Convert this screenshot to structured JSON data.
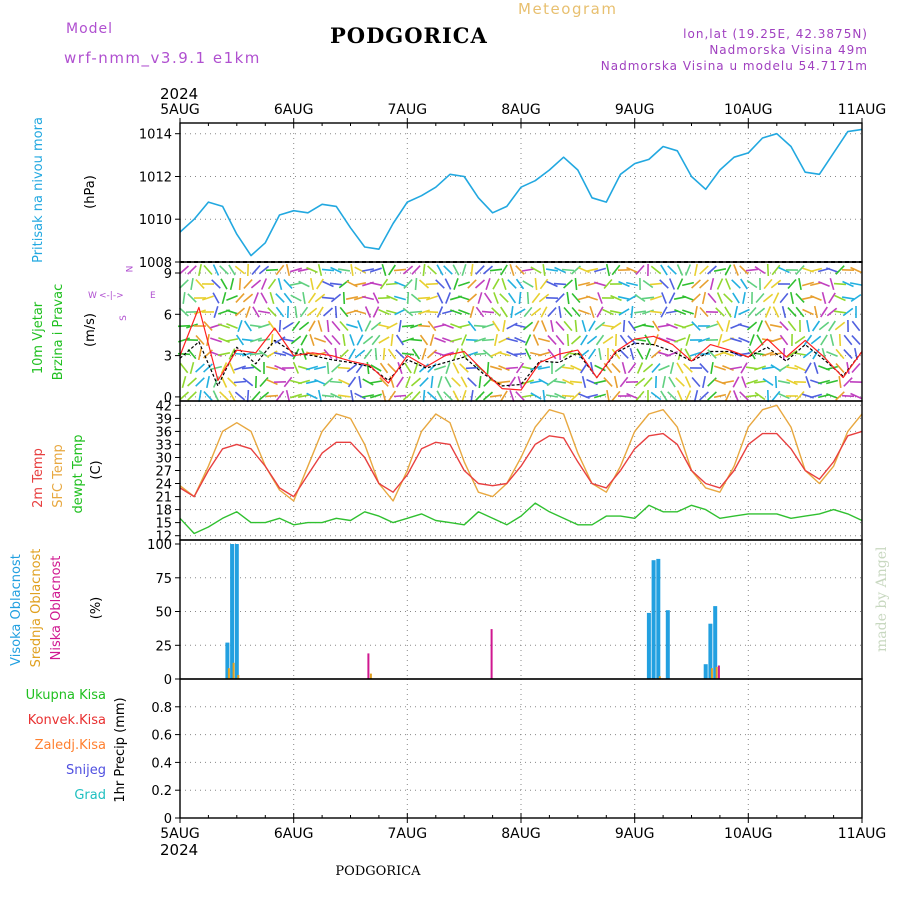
{
  "header": {
    "model_label": "Model",
    "model_name": "wrf-nmm_v3.9.1 e1km",
    "title": "PODGORICA",
    "product": "Meteogram",
    "location_line": "lon,lat (19.25E, 42.3875N)",
    "elevation_line": "Nadmorska Visina 49m",
    "model_elevation_line": "Nadmorska Visina u modelu 54.7171m",
    "year": "2024",
    "footer_title": "PODGORICA",
    "watermark": "made by Angel"
  },
  "time_axis": {
    "ticks": [
      "5AUG",
      "6AUG",
      "7AUG",
      "8AUG",
      "9AUG",
      "10AUG",
      "11AUG"
    ]
  },
  "compass": {
    "north": "N",
    "west": "W",
    "east": "E",
    "south": "S",
    "marks": "<-|->"
  },
  "colors": {
    "pressure": "#22a8e0",
    "temp2m": "#e84040",
    "sfc_temp": "#e8a840",
    "dewpoint": "#30c030",
    "high_cloud": "#22a0e0",
    "mid_cloud": "#e0a020",
    "low_cloud": "#d01890",
    "wind_mean": "#000000",
    "wind_gust": "#ff2020",
    "wind_label": "#20c020",
    "snow_label": "#5050e0",
    "hail_label": "#20c0c0",
    "convective_label": "#e83030",
    "stratiform_label": "#ff8030",
    "model_label": "#b050d0",
    "meteogram_label": "#e8c070",
    "meta_label": "#a040c0"
  },
  "chart_data": [
    {
      "type": "line",
      "panel": "pressure",
      "ylabel": "Pritisak na nivou mora",
      "unit": "(hPa)",
      "ylim": [
        1008,
        1014.5
      ],
      "yticks": [
        1008,
        1010,
        1012,
        1014
      ],
      "grid": true,
      "x_hours": [
        0,
        3,
        6,
        9,
        12,
        15,
        18,
        21,
        24,
        27,
        30,
        33,
        36,
        39,
        42,
        45,
        48,
        51,
        54,
        57,
        60,
        63,
        66,
        69,
        72,
        75,
        78,
        81,
        84,
        87,
        90,
        93,
        96,
        99,
        102,
        105,
        108,
        111,
        114,
        117,
        120,
        123,
        126,
        129,
        132,
        135,
        138,
        141,
        144
      ],
      "series": [
        {
          "values": [
            1009.4,
            1010.0,
            1010.8,
            1010.6,
            1009.3,
            1008.3,
            1008.9,
            1010.2,
            1010.4,
            1010.3,
            1010.7,
            1010.6,
            1009.6,
            1008.7,
            1008.6,
            1009.8,
            1010.8,
            1011.1,
            1011.5,
            1012.1,
            1012.0,
            1011.0,
            1010.3,
            1010.6,
            1011.5,
            1011.8,
            1012.3,
            1012.9,
            1012.3,
            1011.0,
            1010.8,
            1012.1,
            1012.6,
            1012.8,
            1013.4,
            1013.2,
            1012.0,
            1011.4,
            1012.3,
            1012.9,
            1013.1,
            1013.8,
            1014.0,
            1013.4,
            1012.2,
            1012.1,
            1013.1,
            1014.1,
            1014.2
          ]
        }
      ]
    },
    {
      "type": "line",
      "panel": "wind",
      "ylabel": "10m Vjetar",
      "ylabel2": "Brzina i Pravac",
      "unit": "(m/s)",
      "ylim": [
        -0.3,
        9.8
      ],
      "yticks": [
        0,
        3,
        6,
        9
      ],
      "grid": true,
      "x_hours": [
        0,
        4,
        8,
        12,
        16,
        20,
        24,
        28,
        32,
        36,
        40,
        44,
        48,
        52,
        56,
        60,
        64,
        68,
        72,
        76,
        80,
        84,
        88,
        92,
        96,
        100,
        104,
        108,
        112,
        116,
        120,
        124,
        128,
        132,
        136,
        140,
        144
      ],
      "series": [
        {
          "values": [
            2.8,
            4.0,
            0.8,
            3.6,
            2.4,
            4.1,
            3.2,
            3.0,
            2.7,
            2.5,
            2.2,
            1.2,
            2.7,
            2.1,
            2.5,
            2.9,
            1.7,
            0.8,
            0.9,
            2.6,
            2.5,
            3.2,
            1.4,
            3.2,
            3.9,
            3.8,
            3.3,
            2.6,
            3.3,
            3.3,
            2.9,
            3.6,
            2.6,
            3.8,
            2.7,
            1.5,
            3.3
          ]
        },
        {
          "values": [
            3.0,
            6.5,
            1.2,
            3.4,
            3.2,
            5.0,
            3.0,
            3.2,
            3.0,
            2.6,
            2.3,
            1.0,
            3.0,
            2.2,
            3.0,
            3.3,
            1.9,
            0.6,
            0.5,
            2.5,
            3.1,
            3.4,
            1.4,
            3.3,
            4.2,
            4.4,
            3.8,
            2.6,
            3.8,
            3.4,
            2.9,
            4.2,
            2.9,
            4.1,
            2.9,
            1.4,
            3.3
          ]
        }
      ]
    },
    {
      "type": "line",
      "panel": "temperature",
      "ylabel": "2m Temp",
      "ylabel2": "SFC Temp",
      "ylabel3": "dewpt Temp",
      "unit": "(C)",
      "ylim": [
        11,
        43
      ],
      "yticks": [
        12,
        15,
        18,
        21,
        24,
        27,
        30,
        33,
        36,
        39,
        42
      ],
      "grid": true,
      "x_hours": [
        0,
        3,
        6,
        9,
        12,
        15,
        18,
        21,
        24,
        27,
        30,
        33,
        36,
        39,
        42,
        45,
        48,
        51,
        54,
        57,
        60,
        63,
        66,
        69,
        72,
        75,
        78,
        81,
        84,
        87,
        90,
        93,
        96,
        99,
        102,
        105,
        108,
        111,
        114,
        117,
        120,
        123,
        126,
        129,
        132,
        135,
        138,
        141,
        144
      ],
      "series": [
        {
          "values": [
            23,
            21,
            27,
            32,
            33,
            32,
            28,
            23,
            21,
            26,
            31,
            33.5,
            33.5,
            30,
            24,
            22,
            26,
            32,
            33.5,
            33,
            27,
            24,
            23.5,
            24,
            28,
            33,
            35,
            34.5,
            29,
            24,
            23,
            27,
            32,
            35,
            35.5,
            33,
            27,
            24,
            23,
            27,
            33,
            35.5,
            35.5,
            32,
            27,
            25,
            29,
            35,
            36
          ]
        },
        {
          "values": [
            23.5,
            21,
            28,
            36,
            38,
            36,
            28,
            22.5,
            20,
            28,
            36,
            40,
            39,
            33,
            24,
            20,
            27,
            36,
            40,
            38,
            29,
            22,
            21,
            24,
            30,
            37,
            41,
            40,
            31,
            24,
            22,
            28,
            36,
            40,
            41,
            37,
            27,
            23,
            22,
            28,
            37,
            41,
            42,
            37,
            27,
            24,
            28,
            36,
            40
          ]
        },
        {
          "values": [
            16,
            12.5,
            14,
            16,
            17.5,
            15,
            15,
            16,
            14.5,
            15,
            15,
            16,
            15.5,
            17.5,
            16.5,
            15,
            16,
            17,
            15.5,
            15,
            14.5,
            17.5,
            16,
            14.5,
            16.5,
            19.5,
            17.5,
            16,
            14.5,
            14.5,
            16.5,
            16.5,
            16,
            19,
            17.5,
            17.5,
            19,
            18,
            16,
            16.5,
            17,
            17,
            17,
            16,
            16.5,
            17,
            18,
            17,
            15.5
          ]
        }
      ]
    },
    {
      "type": "bar",
      "panel": "clouds",
      "ylabel": "Visoka Oblacnost",
      "ylabel2": "Srednja Oblacnost",
      "ylabel3": "Niska Oblacnost",
      "unit": "(%)",
      "ylim": [
        0,
        103
      ],
      "yticks": [
        0,
        25,
        50,
        75,
        100
      ],
      "grid": true,
      "x_hours": [
        10,
        11,
        12,
        40,
        66,
        99,
        100,
        101,
        103,
        111,
        112,
        113,
        114
      ],
      "series": [
        {
          "name": "Visoka Oblacnost",
          "values": [
            27,
            100,
            100,
            0,
            0,
            49,
            88,
            89,
            51,
            11,
            41,
            54,
            0
          ]
        },
        {
          "name": "Srednja Oblacnost",
          "values": [
            8,
            12,
            3,
            4,
            0,
            0,
            0,
            2,
            0,
            0,
            8,
            9,
            0
          ]
        },
        {
          "name": "Niska Oblacnost",
          "values": [
            0,
            0,
            0,
            19,
            37,
            0,
            0,
            0,
            0,
            0,
            0,
            0,
            10
          ]
        }
      ]
    },
    {
      "type": "bar",
      "panel": "precipitation",
      "ylabel": "1hr Precip (mm)",
      "ylim": [
        0,
        1.0
      ],
      "yticks": [
        "0",
        "0.2",
        "0.4",
        "0.6",
        "0.8"
      ],
      "grid": true,
      "legend": [
        "Ukupna Kisa",
        "Konvek.Kisa",
        "Zaledj.Kisa",
        "Snijeg",
        "Grad"
      ],
      "series": [
        {
          "name": "Ukupna Kisa",
          "values": []
        },
        {
          "name": "Konvek.Kisa",
          "values": []
        },
        {
          "name": "Zaledj.Kisa",
          "values": []
        },
        {
          "name": "Snijeg",
          "values": []
        },
        {
          "name": "Grad",
          "values": []
        }
      ]
    }
  ]
}
